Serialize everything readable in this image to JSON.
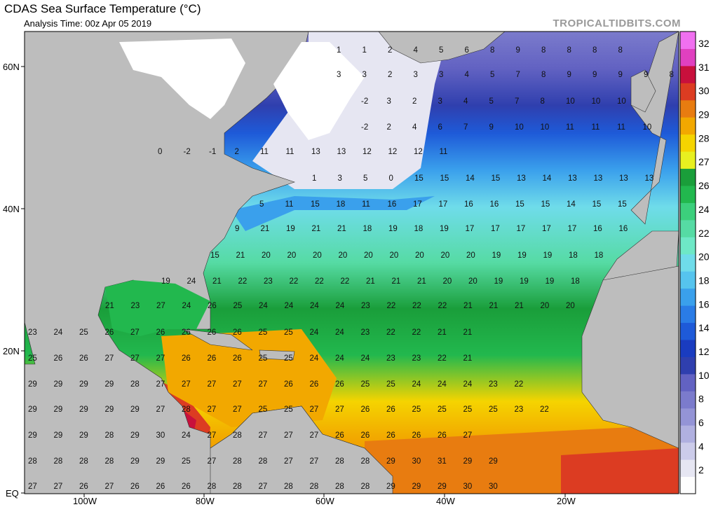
{
  "header": {
    "title": "CDAS Sea Surface Temperature (°C)",
    "subtitle": "Analysis Time: 00z Apr 05 2019",
    "credit": "TROPICALTIDBITS.COM"
  },
  "axes": {
    "lat_labels": [
      "60N",
      "40N",
      "20N",
      "EQ"
    ],
    "lon_labels": [
      "100W",
      "80W",
      "60W",
      "40W",
      "20W"
    ]
  },
  "colorbar": {
    "labels": [
      "32",
      "31",
      "30",
      "29",
      "28",
      "27",
      "26",
      "24",
      "22",
      "20",
      "18",
      "16",
      "14",
      "12",
      "10",
      "8",
      "6",
      "4",
      "2"
    ]
  },
  "colors": {
    "land": "#bdbdbd",
    "ice": "#ffffff",
    "bands": [
      "#fdfdfd",
      "#e6e6f2",
      "#ccccea",
      "#b0b0e0",
      "#9494d6",
      "#7b7bcc",
      "#6262c2",
      "#2f3fae",
      "#1a3cc0",
      "#1e5ad8",
      "#2a7ce6",
      "#3aa0ec",
      "#56c4ee",
      "#6fdcea",
      "#6ee8c6",
      "#56dba4",
      "#3ccf7c",
      "#22b84e",
      "#1a9e3a",
      "#e8f020",
      "#f5d400",
      "#f2a800",
      "#e87c10",
      "#dc3c22",
      "#c8103c",
      "#e040c0",
      "#f070f0"
    ]
  },
  "sst_values": [
    [
      "1",
      "1",
      "2",
      "4",
      "5",
      "6",
      "8",
      "9",
      "8",
      "8",
      "8",
      "8"
    ],
    [
      "3",
      "3",
      "2",
      "3",
      "3",
      "4",
      "5",
      "7",
      "8",
      "9",
      "9",
      "9",
      "9",
      "8"
    ],
    [
      "-2",
      "3",
      "2",
      "3",
      "4",
      "5",
      "7",
      "8",
      "10",
      "10",
      "10"
    ],
    [
      "-2",
      "2",
      "4",
      "6",
      "7",
      "9",
      "10",
      "10",
      "11",
      "11",
      "11",
      "10"
    ],
    [
      "0",
      "-2",
      "-1",
      "2",
      "11",
      "11",
      "13",
      "13",
      "12",
      "12",
      "12",
      "11"
    ],
    [
      "1",
      "3",
      "5",
      "0",
      "15",
      "15",
      "14",
      "15",
      "13",
      "14",
      "13",
      "13",
      "13",
      "13"
    ],
    [
      "5",
      "11",
      "15",
      "18",
      "11",
      "16",
      "17",
      "17",
      "16",
      "16",
      "15",
      "15",
      "14",
      "15",
      "15"
    ],
    [
      "9",
      "21",
      "19",
      "21",
      "21",
      "18",
      "19",
      "18",
      "19",
      "17",
      "17",
      "17",
      "17",
      "17",
      "16",
      "16"
    ],
    [
      "15",
      "21",
      "20",
      "20",
      "20",
      "20",
      "20",
      "20",
      "20",
      "20",
      "20",
      "19",
      "19",
      "19",
      "18",
      "18"
    ],
    [
      "19",
      "24",
      "21",
      "22",
      "23",
      "22",
      "22",
      "22",
      "21",
      "21",
      "21",
      "20",
      "20",
      "19",
      "19",
      "19",
      "18"
    ],
    [
      "21",
      "23",
      "27",
      "24",
      "26",
      "25",
      "24",
      "24",
      "24",
      "24",
      "23",
      "22",
      "22",
      "22",
      "21",
      "21",
      "21",
      "20",
      "20"
    ],
    [
      "23",
      "24",
      "25",
      "26",
      "27",
      "26",
      "26",
      "26",
      "26",
      "25",
      "25",
      "24",
      "24",
      "23",
      "22",
      "22",
      "21",
      "21"
    ],
    [
      "25",
      "26",
      "26",
      "27",
      "27",
      "27",
      "26",
      "26",
      "26",
      "25",
      "25",
      "24",
      "24",
      "24",
      "23",
      "23",
      "22",
      "21"
    ],
    [
      "29",
      "29",
      "29",
      "29",
      "28",
      "27",
      "27",
      "27",
      "27",
      "27",
      "26",
      "26",
      "26",
      "25",
      "25",
      "24",
      "24",
      "24",
      "23",
      "22"
    ],
    [
      "29",
      "29",
      "29",
      "29",
      "29",
      "27",
      "28",
      "27",
      "27",
      "25",
      "25",
      "27",
      "27",
      "26",
      "26",
      "25",
      "25",
      "25",
      "25",
      "23",
      "22"
    ],
    [
      "29",
      "29",
      "29",
      "28",
      "29",
      "30",
      "24",
      "27",
      "28",
      "27",
      "27",
      "27",
      "26",
      "26",
      "26",
      "26",
      "26",
      "27"
    ],
    [
      "28",
      "28",
      "28",
      "28",
      "29",
      "29",
      "25",
      "27",
      "28",
      "28",
      "27",
      "27",
      "28",
      "28",
      "29",
      "30",
      "31",
      "29",
      "29"
    ],
    [
      "27",
      "27",
      "26",
      "27",
      "26",
      "26",
      "26",
      "28",
      "28",
      "27",
      "28",
      "28",
      "28",
      "28",
      "29",
      "29",
      "29",
      "30",
      "30"
    ]
  ]
}
